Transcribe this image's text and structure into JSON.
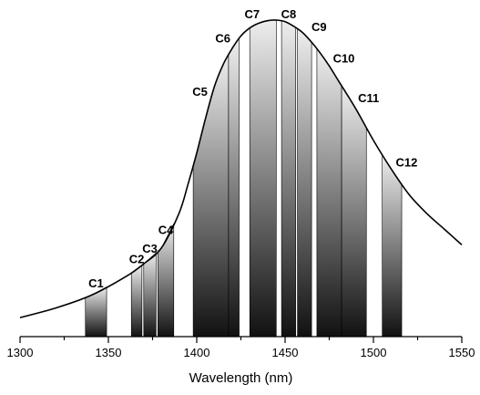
{
  "chart_data": {
    "type": "area",
    "title": "",
    "xlabel": "Wavelength (nm)",
    "ylabel": "",
    "xlim": [
      1300,
      1550
    ],
    "ylim": [
      0,
      1
    ],
    "x_ticks": [
      1300,
      1350,
      1400,
      1450,
      1500,
      1550
    ],
    "x_tick_labels": [
      "1300",
      "1350",
      "1400",
      "1450",
      "1500",
      "1550"
    ],
    "grid": false,
    "curve": {
      "x": [
        1300,
        1320,
        1340,
        1360,
        1370,
        1380,
        1390,
        1395,
        1400,
        1405,
        1410,
        1415,
        1420,
        1425,
        1430,
        1435,
        1440,
        1445,
        1450,
        1455,
        1460,
        1465,
        1470,
        1475,
        1480,
        1490,
        1500,
        1510,
        1520,
        1530,
        1540,
        1550
      ],
      "y": [
        0.06,
        0.09,
        0.13,
        0.19,
        0.23,
        0.28,
        0.39,
        0.48,
        0.58,
        0.69,
        0.79,
        0.86,
        0.91,
        0.95,
        0.975,
        0.99,
        0.998,
        1.0,
        0.995,
        0.98,
        0.96,
        0.93,
        0.895,
        0.855,
        0.81,
        0.72,
        0.62,
        0.53,
        0.45,
        0.39,
        0.34,
        0.29
      ]
    },
    "channels": [
      {
        "label": "C1",
        "start": 1337,
        "end": 1349
      },
      {
        "label": "C2",
        "start": 1363,
        "end": 1369
      },
      {
        "label": "C3",
        "start": 1370,
        "end": 1377
      },
      {
        "label": "C4",
        "start": 1378,
        "end": 1387
      },
      {
        "label": "C5",
        "start": 1398,
        "end": 1418
      },
      {
        "label": "C6",
        "start": 1418,
        "end": 1424
      },
      {
        "label": "C7",
        "start": 1430,
        "end": 1445
      },
      {
        "label": "C8",
        "start": 1448,
        "end": 1456
      },
      {
        "label": "C9",
        "start": 1457,
        "end": 1465
      },
      {
        "label": "C10",
        "start": 1468,
        "end": 1482
      },
      {
        "label": "C11",
        "start": 1482,
        "end": 1496
      },
      {
        "label": "C12",
        "start": 1505,
        "end": 1516
      }
    ]
  }
}
